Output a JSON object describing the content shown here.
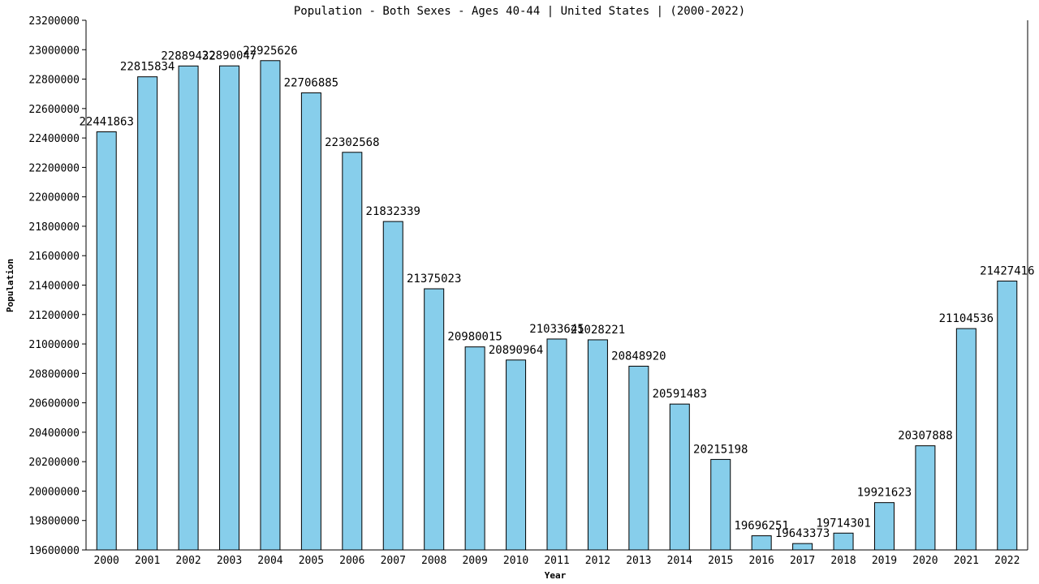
{
  "chart_data": {
    "type": "bar",
    "title": "Population - Both Sexes - Ages 40-44 | United States |  (2000-2022)",
    "xlabel": "Year",
    "ylabel": "Population",
    "ylim": [
      19600000,
      23200000
    ],
    "ytick_step": 200000,
    "bar_color": "#87ceeb",
    "legend": "none",
    "grid": false,
    "categories": [
      "2000",
      "2001",
      "2002",
      "2003",
      "2004",
      "2005",
      "2006",
      "2007",
      "2008",
      "2009",
      "2010",
      "2011",
      "2012",
      "2013",
      "2014",
      "2015",
      "2016",
      "2017",
      "2018",
      "2019",
      "2020",
      "2021",
      "2022"
    ],
    "values": [
      22441863,
      22815834,
      22889432,
      22890047,
      22925626,
      22706885,
      22302568,
      21832339,
      21375023,
      20980015,
      20890964,
      21033645,
      21028221,
      20848920,
      20591483,
      20215198,
      19696251,
      19643373,
      19714301,
      19921623,
      20307888,
      21104536,
      21427416
    ]
  }
}
